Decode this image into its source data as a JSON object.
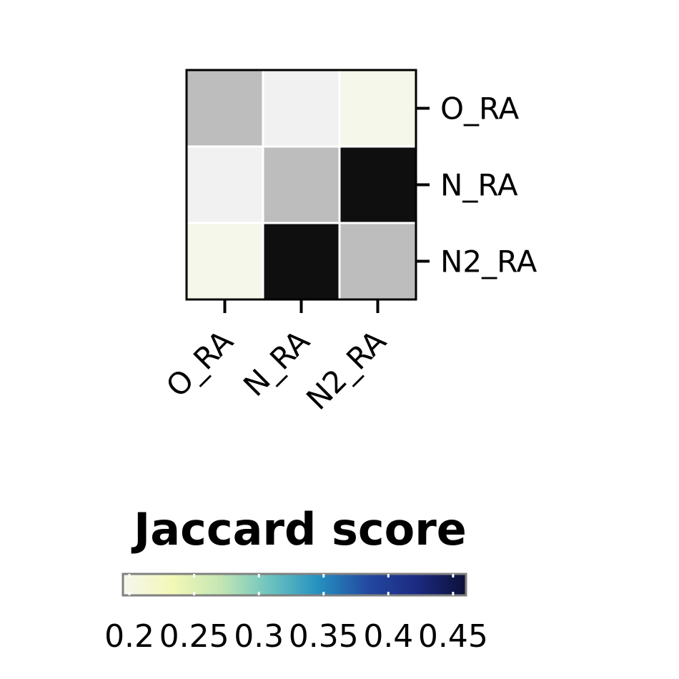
{
  "chart_data": {
    "type": "heatmap",
    "rows": [
      "O_RA",
      "N_RA",
      "N2_RA"
    ],
    "columns": [
      "O_RA",
      "N_RA",
      "N2_RA"
    ],
    "values": [
      [
        0.29,
        0.215,
        0.205
      ],
      [
        0.215,
        0.29,
        0.455
      ],
      [
        0.205,
        0.455,
        0.29
      ]
    ],
    "cell_colors": [
      [
        "#bdbdbd",
        "#f1f1f1",
        "#f5f7ea"
      ],
      [
        "#f1f1f1",
        "#bdbdbd",
        "#0f0f0f"
      ],
      [
        "#f5f7ea",
        "#0f0f0f",
        "#bdbdbd"
      ]
    ],
    "y_tick_side": "right",
    "x_tick_rotation": "45deg",
    "colorbar": {
      "title": "Jaccard score",
      "tick_labels": [
        "0.2",
        "0.25",
        "0.3",
        "0.35",
        "0.4",
        "0.45"
      ],
      "ticks": [
        0.2,
        0.25,
        0.3,
        0.35,
        0.4,
        0.45
      ],
      "range": [
        0.195,
        0.46
      ],
      "colormap": "YlGnBu",
      "colormap_stops": [
        "#f6f6ee",
        "#f3f8b7",
        "#c4e6b4",
        "#6cc3bf",
        "#2590c0",
        "#2348a0",
        "#1c2a80",
        "#0b1038"
      ],
      "orientation": "horizontal",
      "position": "bottom"
    }
  }
}
